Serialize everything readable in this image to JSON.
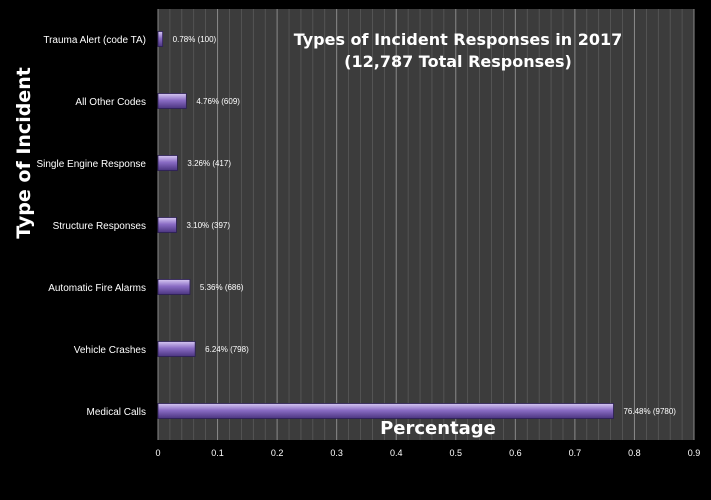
{
  "chart_data": {
    "type": "bar",
    "orientation": "horizontal",
    "title": "Types of Incident Responses in 2017",
    "subtitle": "(12,787 Total Responses)",
    "xlabel": "Percentage",
    "ylabel": "Type of Incident",
    "xlim": [
      0,
      0.9
    ],
    "x_ticks": [
      "0",
      "0.1",
      "0.2",
      "0.3",
      "0.4",
      "0.5",
      "0.6",
      "0.7",
      "0.8",
      "0.9"
    ],
    "grid": true,
    "categories": [
      "Trauma Alert (code TA)",
      "All Other Codes",
      "Single Engine Response",
      "Structure Responses",
      "Automatic Fire Alarms",
      "Vehicle Crashes",
      "Medical Calls"
    ],
    "values": [
      0.0078,
      0.0476,
      0.0326,
      0.031,
      0.0536,
      0.0624,
      0.7648
    ],
    "data_labels": [
      "0.78% (100)",
      "4.76% (609)",
      "3.26% (417)",
      "3.10% (397)",
      "5.36% (686)",
      "6.24% (798)",
      "76.48% (9780)"
    ],
    "colors": {
      "background": "#000000",
      "plot_area": "#3c3c3c",
      "grid": "#7a7a7a",
      "bar": "#8a6cc4",
      "text": "#ffffff"
    }
  }
}
